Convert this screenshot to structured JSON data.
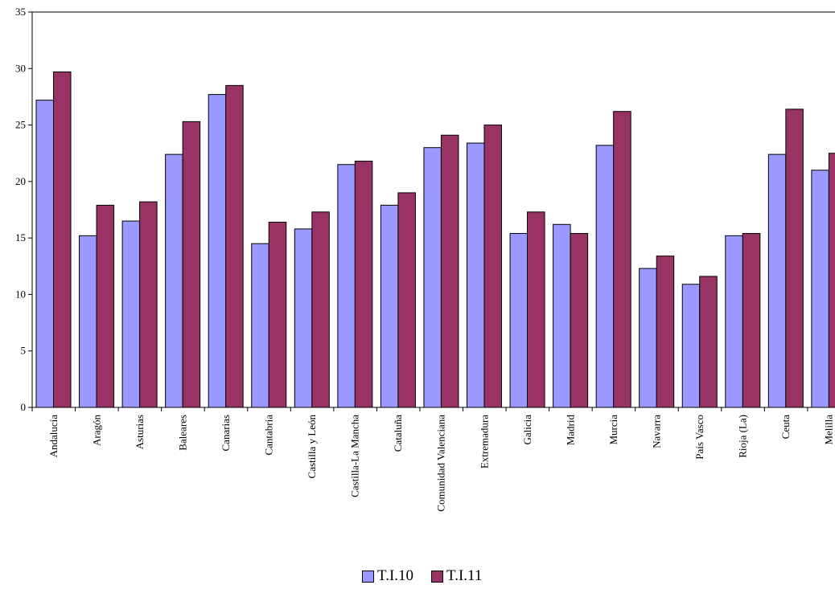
{
  "chart_data": {
    "type": "bar",
    "title": "",
    "xlabel": "",
    "ylabel": "",
    "ylim": [
      0,
      35
    ],
    "yticks": [
      0,
      5,
      10,
      15,
      20,
      25,
      30,
      35
    ],
    "grid": false,
    "legend_position": "bottom",
    "categories": [
      "Andalucía",
      "Aragón",
      "Asturias",
      "Baleares",
      "Canarias",
      "Cantabria",
      "Castilla y León",
      "Castilla-La Mancha",
      "Cataluña",
      "Comunidad Valenciana",
      "Extremadura",
      "Galicia",
      "Madrid",
      "Murcia",
      "Navarra",
      "País Vasco",
      "Rioja (La)",
      "Ceuta",
      "Melilla"
    ],
    "series": [
      {
        "name": "T.I.10",
        "color": "#9999ff",
        "values": [
          27.2,
          15.2,
          16.5,
          22.4,
          27.7,
          14.5,
          15.8,
          21.5,
          17.9,
          23.0,
          23.4,
          15.4,
          16.2,
          23.2,
          12.3,
          10.9,
          15.2,
          22.4,
          21.0
        ]
      },
      {
        "name": "T.I.11",
        "color": "#993366",
        "values": [
          29.7,
          17.9,
          18.2,
          25.3,
          28.5,
          16.4,
          17.3,
          21.8,
          19.0,
          24.1,
          25.0,
          17.3,
          15.4,
          26.2,
          13.4,
          11.6,
          15.4,
          26.4,
          22.5
        ]
      }
    ]
  }
}
